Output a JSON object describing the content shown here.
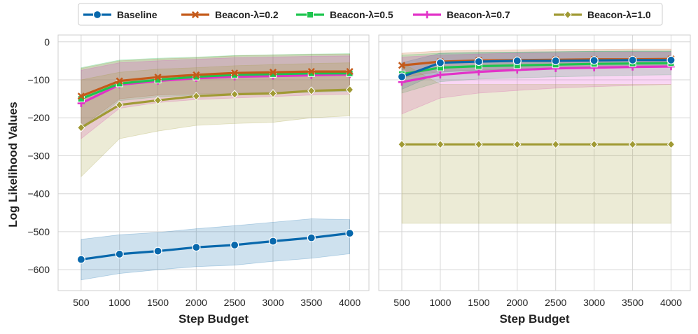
{
  "chart_data": {
    "type": "line",
    "legend": {
      "placement": "top-center",
      "entries": [
        {
          "label": "Baseline",
          "color": "#0868ac",
          "marker": "circle"
        },
        {
          "label": "Beacon-λ=0.2",
          "color": "#c45a1a",
          "marker": "x"
        },
        {
          "label": "Beacon-λ=0.5",
          "color": "#1dc54e",
          "marker": "square"
        },
        {
          "label": "Beacon-λ=0.7",
          "color": "#e232c8",
          "marker": "plus"
        },
        {
          "label": "Beacon-λ=1.0",
          "color": "#a09a34",
          "marker": "diamond"
        }
      ]
    },
    "shared_y": {
      "label": "Log Likelihood Values",
      "ylim": [
        -655,
        18
      ],
      "ticks": [
        0,
        -100,
        -200,
        -300,
        -400,
        -500,
        -600
      ],
      "tick_labels": [
        "0",
        "−100",
        "−200",
        "−300",
        "−400",
        "−500",
        "−600"
      ]
    },
    "panels": [
      {
        "xlabel": "Step Budget",
        "xlim": [
          200,
          4250
        ],
        "x": [
          500,
          1000,
          1500,
          2000,
          2500,
          3000,
          3500,
          4000
        ],
        "x_tick_labels": [
          "500",
          "1000",
          "1500",
          "2000",
          "2500",
          "3000",
          "3500",
          "4000"
        ],
        "grid": true,
        "series": [
          {
            "name": "Baseline",
            "values": [
              -573,
              -559,
              -551,
              -541,
              -535,
              -525,
              -516,
              -504
            ],
            "lower": [
              -627,
              -610,
              -600,
              -592,
              -588,
              -578,
              -570,
              -558
            ],
            "upper": [
              -520,
              -508,
              -502,
              -492,
              -484,
              -475,
              -466,
              -468
            ]
          },
          {
            "name": "Beacon-λ=0.2",
            "values": [
              -143,
              -103,
              -93,
              -87,
              -82,
              -80,
              -78,
              -78
            ],
            "lower": [
              -225,
              -150,
              -140,
              -137,
              -135,
              -133,
              -130,
              -127
            ],
            "upper": [
              -70,
              -50,
              -45,
              -42,
              -37,
              -35,
              -33,
              -32
            ]
          },
          {
            "name": "Beacon-λ=0.5",
            "values": [
              -150,
              -110,
              -100,
              -92,
              -87,
              -85,
              -83,
              -83
            ],
            "lower": [
              -232,
              -155,
              -145,
              -140,
              -138,
              -136,
              -133,
              -130
            ],
            "upper": [
              -68,
              -48,
              -43,
              -40,
              -36,
              -34,
              -32,
              -31
            ]
          },
          {
            "name": "Beacon-λ=0.7",
            "values": [
              -162,
              -113,
              -103,
              -96,
              -92,
              -90,
              -88,
              -86
            ],
            "lower": [
              -255,
              -175,
              -160,
              -152,
              -148,
              -144,
              -140,
              -138
            ],
            "upper": [
              -75,
              -55,
              -50,
              -46,
              -42,
              -40,
              -38,
              -37
            ]
          },
          {
            "name": "Beacon-λ=1.0",
            "values": [
              -226,
              -166,
              -154,
              -143,
              -138,
              -136,
              -129,
              -126
            ],
            "lower": [
              -355,
              -255,
              -235,
              -220,
              -215,
              -212,
              -200,
              -195
            ],
            "upper": [
              -100,
              -80,
              -72,
              -68,
              -63,
              -60,
              -57,
              -55
            ]
          }
        ]
      },
      {
        "xlabel": "Step Budget",
        "xlim": [
          200,
          4250
        ],
        "x": [
          500,
          1000,
          1500,
          2000,
          2500,
          3000,
          3500,
          4000
        ],
        "x_tick_labels": [
          "500",
          "1000",
          "1500",
          "2000",
          "2500",
          "3000",
          "3500",
          "4000"
        ],
        "grid": true,
        "series": [
          {
            "name": "Baseline",
            "values": [
              -92,
              -55,
              -52,
              -50,
              -50,
              -49,
              -48,
              -48
            ],
            "lower": [
              -125,
              -80,
              -75,
              -72,
              -70,
              -68,
              -67,
              -66
            ],
            "upper": [
              -55,
              -30,
              -28,
              -27,
              -26,
              -25,
              -25,
              -25
            ]
          },
          {
            "name": "Beacon-λ=0.2",
            "values": [
              -62,
              -52,
              -49,
              -48,
              -47,
              -46,
              -46,
              -45
            ],
            "lower": [
              -95,
              -78,
              -74,
              -72,
              -70,
              -68,
              -67,
              -66
            ],
            "upper": [
              -30,
              -24,
              -22,
              -21,
              -20,
              -20,
              -19,
              -19
            ]
          },
          {
            "name": "Beacon-λ=0.5",
            "values": [
              -85,
              -68,
              -64,
              -62,
              -60,
              -58,
              -57,
              -56
            ],
            "lower": [
              -135,
              -105,
              -98,
              -95,
              -92,
              -90,
              -88,
              -87
            ],
            "upper": [
              -35,
              -30,
              -28,
              -27,
              -26,
              -25,
              -24,
              -24
            ]
          },
          {
            "name": "Beacon-λ=0.7",
            "values": [
              -106,
              -87,
              -79,
              -74,
              -70,
              -68,
              -66,
              -65
            ],
            "lower": [
              -190,
              -148,
              -135,
              -128,
              -122,
              -118,
              -115,
              -112
            ],
            "upper": [
              -40,
              -35,
              -32,
              -30,
              -29,
              -28,
              -27,
              -27
            ]
          },
          {
            "name": "Beacon-λ=1.0",
            "values": [
              -270,
              -270,
              -270,
              -270,
              -270,
              -270,
              -270,
              -270
            ],
            "lower": [
              -478,
              -478,
              -478,
              -478,
              -478,
              -478,
              -478,
              -478
            ],
            "upper": [
              -55,
              -112,
              -112,
              -112,
              -112,
              -112,
              -112,
              -112
            ]
          }
        ]
      }
    ]
  }
}
